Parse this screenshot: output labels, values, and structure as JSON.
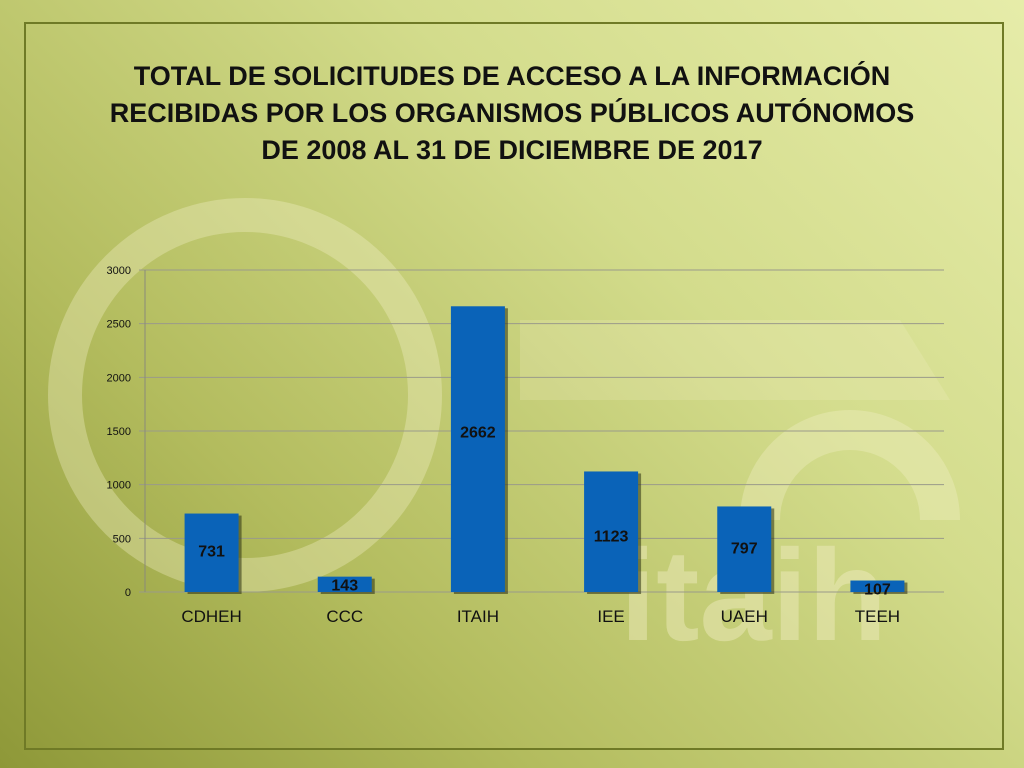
{
  "title_lines": [
    "TOTAL DE SOLICITUDES DE ACCESO A LA INFORMACIÓN",
    "RECIBIDAS POR LOS ORGANISMOS PÚBLICOS AUTÓNOMOS",
    "DE 2008 AL 31 DE DICIEMBRE DE 2017"
  ],
  "watermark_text": "itaih",
  "colors": {
    "bar": "#0a63b8",
    "bar_shadow": "#2a2f10",
    "gridline": "#9a9a8a",
    "axis": "#8a8a7a"
  },
  "chart_data": {
    "type": "bar",
    "title": "TOTAL DE SOLICITUDES DE ACCESO A LA INFORMACIÓN RECIBIDAS POR LOS ORGANISMOS PÚBLICOS AUTÓNOMOS DE 2008 AL 31 DE DICIEMBRE DE 2017",
    "categories": [
      "CDHEH",
      "CCC",
      "ITAIH",
      "IEE",
      "UAEH",
      "TEEH"
    ],
    "values": [
      731,
      143,
      2662,
      1123,
      797,
      107
    ],
    "data_labels": [
      "731",
      "143",
      "2662",
      "1123",
      "797",
      "107"
    ],
    "yticks": [
      0,
      500,
      1000,
      1500,
      2000,
      2500,
      3000
    ],
    "ylim": [
      0,
      3000
    ],
    "xlabel": "",
    "ylabel": "",
    "grid": true,
    "legend": "none"
  }
}
